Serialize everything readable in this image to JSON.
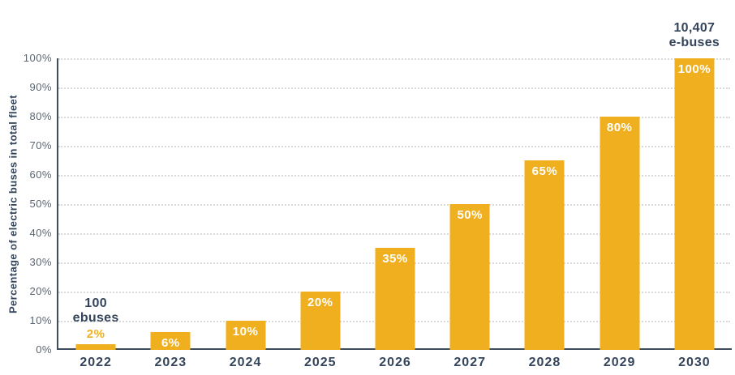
{
  "chart_data": {
    "type": "bar",
    "title": "",
    "xlabel": "",
    "ylabel": "Percentage of electric buses in total fleet",
    "categories": [
      "2022",
      "2023",
      "2024",
      "2025",
      "2026",
      "2027",
      "2028",
      "2029",
      "2030"
    ],
    "values": [
      2,
      6,
      10,
      20,
      35,
      50,
      65,
      80,
      100
    ],
    "bar_labels": [
      "2%",
      "6%",
      "10%",
      "20%",
      "35%",
      "50%",
      "65%",
      "80%",
      "100%"
    ],
    "bar_label_position": [
      "outside",
      "inside",
      "inside",
      "inside",
      "inside",
      "inside",
      "inside",
      "inside",
      "inside"
    ],
    "ylim": [
      0,
      100
    ],
    "ytick_step": 10,
    "ytick_suffix": "%",
    "grid": "horizontal-dotted",
    "legend": "none",
    "annotations": [
      {
        "category": "2022",
        "lines": [
          "100",
          "ebuses"
        ]
      },
      {
        "category": "2030",
        "lines": [
          "10,407",
          "e-buses"
        ]
      }
    ],
    "colors": {
      "bar": "#F0AF1F",
      "label_inside": "#FFFFFF",
      "label_outside": "#F0AF1F",
      "tick_text": "#5B6572",
      "dark_text": "#34455B",
      "gridline": "#D9D9D9",
      "axis_line": "#3E4C5B",
      "background": "#FFFFFF"
    }
  }
}
